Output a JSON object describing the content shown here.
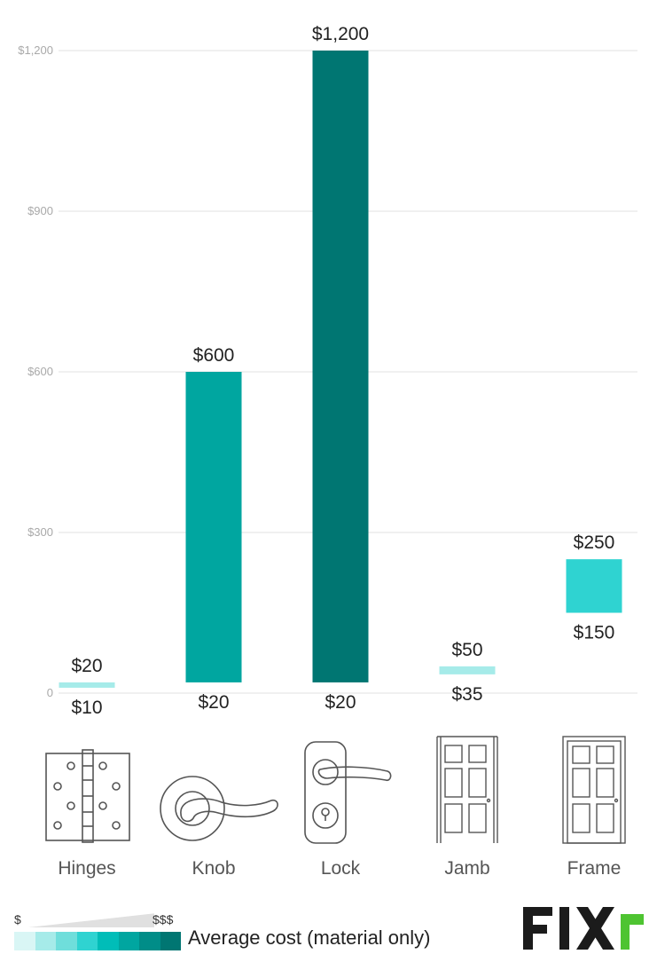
{
  "chart_data": {
    "type": "bar",
    "subtype": "floating-range",
    "categories": [
      "Hinges",
      "Knob",
      "Lock",
      "Jamb",
      "Frame"
    ],
    "ranges": [
      {
        "low": 10,
        "high": 20,
        "low_label": "$10",
        "high_label": "$20",
        "color": "#a6ebe9",
        "icon": "hinge-icon"
      },
      {
        "low": 20,
        "high": 600,
        "low_label": "$20",
        "high_label": "$600",
        "color": "#00a6a0",
        "icon": "door-knob-icon"
      },
      {
        "low": 20,
        "high": 1200,
        "low_label": "$20",
        "high_label": "$1,200",
        "color": "#007672",
        "icon": "door-lock-icon"
      },
      {
        "low": 35,
        "high": 50,
        "low_label": "$35",
        "high_label": "$50",
        "color": "#a6ebe9",
        "icon": "door-jamb-icon"
      },
      {
        "low": 150,
        "high": 250,
        "low_label": "$150",
        "high_label": "$250",
        "color": "#2fd3d1",
        "icon": "door-frame-icon"
      }
    ],
    "ylim": [
      0,
      1200
    ],
    "yticks": [
      0,
      300,
      600,
      900,
      1200
    ],
    "ytick_labels": [
      "0",
      "$300",
      "$600",
      "$900",
      "$1,200"
    ],
    "grid": true,
    "xlabel": "",
    "ylabel": ""
  },
  "legend": {
    "low_label": "$",
    "high_label": "$$$",
    "title": "Average cost (material only)",
    "swatch_colors": [
      "#d9f6f5",
      "#a6ebe9",
      "#6fdedb",
      "#2fd3d1",
      "#00bdb8",
      "#00a6a0",
      "#008d88",
      "#007672"
    ]
  },
  "brand": {
    "name": "FIXR",
    "dark_color": "#1b1b1b",
    "accent_color": "#4ec431"
  }
}
